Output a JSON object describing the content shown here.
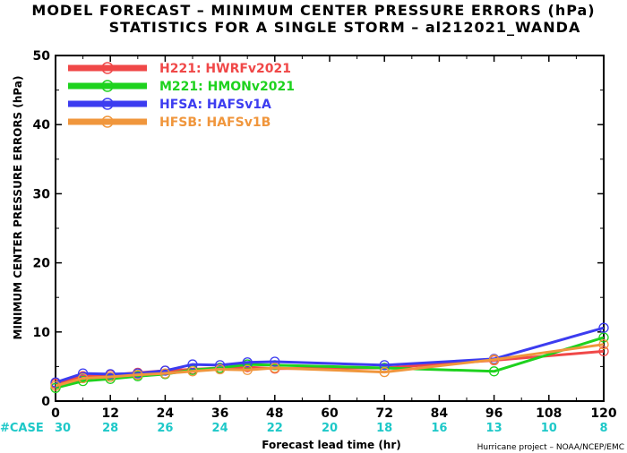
{
  "chart_data": {
    "type": "line",
    "title": "MODEL FORECAST – MINIMUM CENTER PRESSURE ERRORS (hPa)",
    "subtitle": "STATISTICS FOR A SINGLE STORM – al212021_WANDA",
    "xlabel": "Forecast lead time (hr)",
    "ylabel": "MINIMUM CENTER PRESSURE ERRORS (hPa)",
    "xlim": [
      0,
      120
    ],
    "ylim": [
      0,
      50
    ],
    "x_ticks": [
      "0",
      "12",
      "24",
      "36",
      "48",
      "60",
      "72",
      "84",
      "96",
      "108",
      "120"
    ],
    "y_ticks": [
      "0",
      "10",
      "20",
      "30",
      "40",
      "50"
    ],
    "case_label": "#CASE",
    "case_counts": [
      "30",
      "28",
      "26",
      "24",
      "22",
      "20",
      "18",
      "16",
      "13",
      "10",
      "8"
    ],
    "credit": "Hurricane project – NOAA/NCEP/EMC",
    "legend_position": "top-left",
    "series": [
      {
        "id": "H221",
        "label": "H221: HWRFv2021",
        "color": "#f04848",
        "x": [
          0,
          6,
          12,
          18,
          24,
          30,
          36,
          42,
          48,
          72,
          96,
          120
        ],
        "y": [
          2.5,
          3.6,
          3.8,
          4.1,
          4.4,
          4.6,
          4.8,
          4.9,
          4.7,
          4.8,
          5.9,
          7.2
        ]
      },
      {
        "id": "M221",
        "label": "M221: HMONv2021",
        "color": "#1ed21e",
        "x": [
          0,
          6,
          12,
          18,
          24,
          30,
          36,
          42,
          48,
          72,
          96,
          120
        ],
        "y": [
          1.9,
          2.9,
          3.2,
          3.6,
          3.9,
          4.5,
          4.8,
          5.3,
          5.2,
          4.8,
          4.3,
          9.2
        ]
      },
      {
        "id": "HFSA",
        "label": "HFSA: HAFSv1A",
        "color": "#3c3cf0",
        "x": [
          0,
          6,
          12,
          18,
          24,
          30,
          36,
          42,
          48,
          72,
          96,
          120
        ],
        "y": [
          2.7,
          4.0,
          3.9,
          4.0,
          4.4,
          5.3,
          5.2,
          5.6,
          5.7,
          5.2,
          6.1,
          10.6
        ]
      },
      {
        "id": "HFSB",
        "label": "HFSB: HAFSv1B",
        "color": "#f0963c",
        "x": [
          0,
          6,
          12,
          18,
          24,
          30,
          36,
          42,
          48,
          72,
          96,
          120
        ],
        "y": [
          2.2,
          3.3,
          3.5,
          3.8,
          4.0,
          4.3,
          4.6,
          4.5,
          4.8,
          4.2,
          6.0,
          8.2
        ]
      }
    ]
  }
}
